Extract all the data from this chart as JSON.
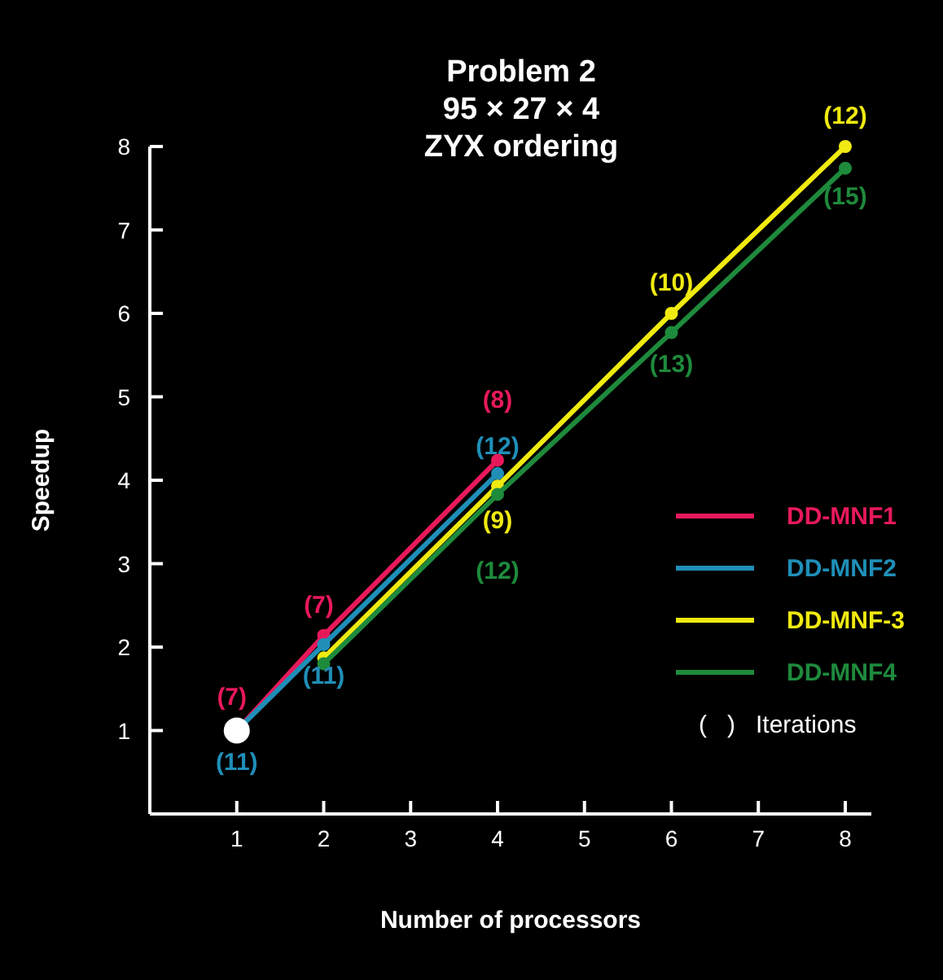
{
  "chart_data": {
    "type": "line",
    "title": "Problem 2\n95 × 27 × 4\nZYX ordering",
    "xlabel": "Number of processors",
    "ylabel": "Speedup",
    "xlim": [
      0,
      8.3
    ],
    "xticks": [
      1,
      2,
      3,
      4,
      5,
      6,
      7,
      8
    ],
    "ylim": [
      0,
      8
    ],
    "yticks": [
      1,
      2,
      3,
      4,
      5,
      6,
      7,
      8
    ],
    "grid": false,
    "legend": "right",
    "marker": "circle",
    "line_style": "solid",
    "series": [
      {
        "name": "DD-MNF1",
        "color": "#e8195a",
        "x": [
          1,
          2,
          4
        ],
        "values": [
          1,
          2.14,
          4.24
        ]
      },
      {
        "name": "DD-MNF2",
        "color": "#1f8fb8",
        "x": [
          1,
          2,
          4
        ],
        "values": [
          1,
          2.03,
          4.08
        ]
      },
      {
        "name": "DD-MNF-3",
        "color": "#f0ea10",
        "x": [
          2,
          4,
          6,
          8
        ],
        "values": [
          1.87,
          3.93,
          6,
          8
        ]
      },
      {
        "name": "DD-MNF4",
        "color": "#1e8a3c",
        "x": [
          2,
          4,
          6,
          8
        ],
        "values": [
          1.8,
          3.83,
          5.77,
          7.74
        ]
      },
      {
        "type": "scatter",
        "color": "#ffffff",
        "x": [
          1
        ],
        "values": [
          1
        ]
      }
    ],
    "annotations": [
      "(   )   Iterations",
      {
        "text": "(7)",
        "x": 1,
        "y": 1
      },
      {
        "text": "(7)",
        "x": 2,
        "y": 2.14
      },
      {
        "text": "(8)",
        "x": 4,
        "y": 4.24
      },
      {
        "text": "(11)",
        "x": 1,
        "y": 1
      },
      {
        "text": "(11)",
        "x": 2,
        "y": 2.03
      },
      {
        "text": "(12)",
        "x": 4,
        "y": 4.08
      },
      {
        "text": "(9)",
        "x": 4,
        "y": 3.93
      },
      {
        "text": "(10)",
        "x": 6,
        "y": 6
      },
      {
        "text": "(12)",
        "x": 8,
        "y": 8
      },
      {
        "text": "(12)",
        "x": 4,
        "y": 3.83
      },
      {
        "text": "(13)",
        "x": 6,
        "y": 5.77
      },
      {
        "text": "(15)",
        "x": 8,
        "y": 7.74
      }
    ]
  }
}
